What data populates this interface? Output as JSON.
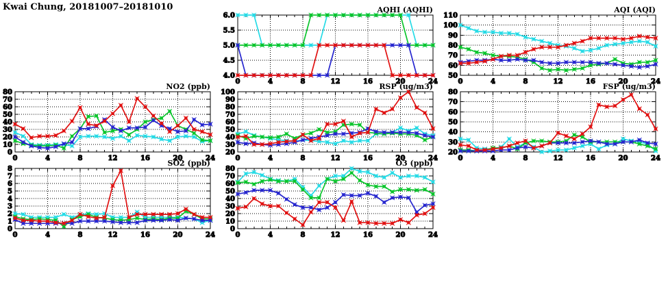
{
  "header": {
    "title": "Kwai Chung, 20181007–20181010"
  },
  "palette": {
    "red": "#e11212",
    "blue": "#2727cf",
    "green": "#0bc52d",
    "cyan": "#27dbe6"
  },
  "chart_data": [
    {
      "id": "aqhi",
      "type": "line",
      "title": "AQHI (AQHI)",
      "xlim": [
        0,
        24
      ],
      "x_step": 1,
      "xtick_labels": [
        "0",
        "4",
        "8",
        "12",
        "16",
        "20",
        "24"
      ],
      "ylim": [
        4.0,
        6.0
      ],
      "ytick_labels": [
        "4.0",
        "4.5",
        "5.0",
        "5.5",
        "6.0"
      ],
      "grid": "dotted",
      "legend": "none",
      "series": [
        {
          "name": "cyan",
          "color": "cyan",
          "values": [
            6,
            6,
            6,
            5,
            5,
            5,
            5,
            5,
            5,
            5,
            5,
            6,
            6,
            6,
            6,
            6,
            6,
            6,
            6,
            6,
            6,
            6,
            5,
            5,
            5
          ]
        },
        {
          "name": "green",
          "color": "green",
          "values": [
            5,
            5,
            5,
            5,
            5,
            5,
            5,
            5,
            5,
            6,
            6,
            6,
            6,
            6,
            6,
            6,
            6,
            6,
            6,
            6,
            6,
            5,
            5,
            5,
            5
          ]
        },
        {
          "name": "blue",
          "color": "blue",
          "values": [
            5,
            4,
            4,
            4,
            4,
            4,
            4,
            4,
            4,
            4,
            4,
            4,
            5,
            5,
            5,
            5,
            5,
            5,
            5,
            5,
            5,
            5,
            4,
            4,
            4
          ]
        },
        {
          "name": "red",
          "color": "red",
          "values": [
            4,
            4,
            4,
            4,
            4,
            4,
            4,
            4,
            4,
            4,
            5,
            5,
            5,
            5,
            5,
            5,
            5,
            5,
            5,
            4,
            4,
            4,
            4,
            4,
            4
          ]
        }
      ]
    },
    {
      "id": "aqi",
      "type": "line",
      "title": "AQI (AQI)",
      "xlim": [
        0,
        24
      ],
      "x_step": 1,
      "xtick_labels": [
        "0",
        "4",
        "8",
        "12",
        "16",
        "20",
        "24"
      ],
      "ylim": [
        50,
        110
      ],
      "ytick_labels": [
        "50",
        "60",
        "70",
        "80",
        "90",
        "100",
        "110"
      ],
      "grid": "dotted",
      "legend": "none",
      "series": [
        {
          "name": "cyan",
          "color": "cyan",
          "values": [
            100,
            97,
            94,
            93,
            93,
            92,
            92,
            91,
            88,
            86,
            84,
            82,
            80,
            79,
            77,
            74,
            75,
            77,
            80,
            81,
            82,
            83,
            84,
            83,
            79
          ]
        },
        {
          "name": "green",
          "color": "green",
          "values": [
            78,
            76,
            73,
            72,
            70,
            69,
            69,
            68,
            66,
            63,
            57,
            55,
            56,
            55,
            56,
            57,
            60,
            61,
            62,
            66,
            62,
            61,
            63,
            63,
            65
          ]
        },
        {
          "name": "blue",
          "color": "blue",
          "values": [
            63,
            64,
            65,
            65,
            66,
            65,
            65,
            66,
            65,
            65,
            63,
            62,
            62,
            63,
            63,
            63,
            63,
            62,
            62,
            61,
            60,
            59,
            58,
            59,
            61
          ]
        },
        {
          "name": "red",
          "color": "red",
          "values": [
            62,
            62,
            63,
            64,
            66,
            69,
            70,
            70,
            73,
            76,
            78,
            78,
            78,
            80,
            82,
            84,
            87,
            87,
            87,
            87,
            86,
            87,
            89,
            88,
            87
          ]
        }
      ]
    },
    {
      "id": "no2",
      "type": "line",
      "title": "NO2 (ppb)",
      "xlim": [
        0,
        24
      ],
      "x_step": 1,
      "xtick_labels": [
        "0",
        "4",
        "8",
        "12",
        "16",
        "20",
        "24"
      ],
      "ylim": [
        0,
        80
      ],
      "ytick_labels": [
        "0",
        "10",
        "20",
        "30",
        "40",
        "50",
        "60",
        "70",
        "80"
      ],
      "grid": "dotted",
      "legend": "none",
      "series": [
        {
          "name": "cyan",
          "color": "cyan",
          "values": [
            26,
            21,
            10,
            9,
            9,
            10,
            10,
            8,
            20,
            21,
            21,
            20,
            18,
            21,
            15,
            22,
            21,
            20,
            17,
            15,
            20,
            21,
            20,
            14,
            15
          ]
        },
        {
          "name": "green",
          "color": "green",
          "values": [
            15,
            11,
            9,
            8,
            8,
            9,
            5,
            21,
            31,
            47,
            48,
            26,
            28,
            30,
            23,
            30,
            40,
            43,
            45,
            54,
            35,
            30,
            25,
            16,
            15
          ]
        },
        {
          "name": "blue",
          "color": "blue",
          "values": [
            20,
            13,
            8,
            6,
            5,
            7,
            11,
            13,
            31,
            31,
            34,
            43,
            33,
            28,
            32,
            32,
            33,
            42,
            35,
            31,
            27,
            28,
            43,
            36,
            37
          ]
        },
        {
          "name": "red",
          "color": "red",
          "values": [
            37,
            31,
            19,
            21,
            21,
            22,
            28,
            41,
            59,
            37,
            35,
            41,
            51,
            62,
            40,
            71,
            60,
            48,
            38,
            27,
            35,
            45,
            30,
            27,
            23
          ]
        }
      ]
    },
    {
      "id": "rsp",
      "type": "line",
      "title": "RSP (ug/m3)",
      "xlim": [
        0,
        24
      ],
      "x_step": 1,
      "xtick_labels": [
        "0",
        "4",
        "8",
        "12",
        "16",
        "20",
        "24"
      ],
      "ylim": [
        20,
        100
      ],
      "ytick_labels": [
        "20",
        "30",
        "40",
        "50",
        "60",
        "70",
        "80",
        "90",
        "100"
      ],
      "grid": "dotted",
      "legend": "none",
      "series": [
        {
          "name": "cyan",
          "color": "cyan",
          "values": [
            44,
            47,
            42,
            40,
            38,
            36,
            35,
            34,
            36,
            35,
            34,
            33,
            31,
            35,
            33,
            35,
            35,
            44,
            44,
            46,
            52,
            48,
            52,
            44,
            42
          ]
        },
        {
          "name": "green",
          "color": "green",
          "values": [
            42,
            38,
            41,
            40,
            39,
            40,
            44,
            38,
            43,
            45,
            50,
            46,
            47,
            56,
            57,
            56,
            46,
            45,
            44,
            45,
            44,
            44,
            42,
            36,
            40
          ]
        },
        {
          "name": "blue",
          "color": "blue",
          "values": [
            33,
            31,
            32,
            30,
            29,
            30,
            31,
            33,
            36,
            38,
            40,
            42,
            44,
            44,
            45,
            46,
            51,
            47,
            46,
            46,
            46,
            46,
            45,
            42,
            40
          ]
        },
        {
          "name": "red",
          "color": "red",
          "values": [
            40,
            41,
            30,
            30,
            31,
            33,
            34,
            35,
            43,
            35,
            38,
            57,
            57,
            61,
            40,
            45,
            46,
            77,
            72,
            77,
            92,
            100,
            79,
            72,
            51
          ]
        }
      ]
    },
    {
      "id": "fsp",
      "type": "line",
      "title": "FSP (ug/m3)",
      "xlim": [
        0,
        24
      ],
      "x_step": 1,
      "xtick_labels": [
        "0",
        "4",
        "8",
        "12",
        "16",
        "20",
        "24"
      ],
      "ylim": [
        20,
        80
      ],
      "ytick_labels": [
        "20",
        "30",
        "40",
        "50",
        "60",
        "70",
        "80"
      ],
      "grid": "dotted",
      "legend": "none",
      "series": [
        {
          "name": "cyan",
          "color": "cyan",
          "values": [
            33,
            32,
            24,
            23,
            23,
            25,
            33,
            25,
            29,
            25,
            20,
            21,
            22,
            22,
            24,
            26,
            28,
            23,
            27,
            28,
            33,
            31,
            30,
            28,
            21
          ]
        },
        {
          "name": "green",
          "color": "green",
          "values": [
            22,
            22,
            21,
            22,
            24,
            24,
            26,
            23,
            29,
            31,
            31,
            30,
            30,
            31,
            37,
            35,
            30,
            30,
            30,
            30,
            30,
            30,
            28,
            26,
            23
          ]
        },
        {
          "name": "blue",
          "color": "blue",
          "values": [
            21,
            21,
            21,
            21,
            21,
            22,
            22,
            24,
            25,
            24,
            26,
            29,
            29,
            29,
            29,
            30,
            31,
            30,
            28,
            28,
            30,
            30,
            32,
            29,
            28
          ]
        },
        {
          "name": "red",
          "color": "red",
          "values": [
            27,
            26,
            22,
            22,
            23,
            24,
            26,
            29,
            31,
            24,
            26,
            29,
            39,
            36,
            33,
            38,
            45,
            67,
            65,
            66,
            72,
            77,
            63,
            57,
            43
          ]
        }
      ]
    },
    {
      "id": "so2",
      "type": "line",
      "title": "SO2 (ppb)",
      "xlim": [
        0,
        24
      ],
      "x_step": 1,
      "xtick_labels": [
        "0",
        "4",
        "8",
        "12",
        "16",
        "20",
        "24"
      ],
      "ylim": [
        0,
        8
      ],
      "ytick_labels": [
        "0",
        "1",
        "2",
        "3",
        "4",
        "5",
        "6",
        "7",
        "8"
      ],
      "grid": "dotted",
      "legend": "none",
      "series": [
        {
          "name": "cyan",
          "color": "cyan",
          "values": [
            2.0,
            1.9,
            1.5,
            1.5,
            1.5,
            1.5,
            1.9,
            1.5,
            1.8,
            2.0,
            1.9,
            2.0,
            1.5,
            1.5,
            1.5,
            2.2,
            1.5,
            1.5,
            1.5,
            1.5,
            1.5,
            1.4,
            1.3,
            0.8,
            1.1
          ]
        },
        {
          "name": "green",
          "color": "green",
          "values": [
            1.6,
            1.3,
            1.2,
            1.3,
            1.2,
            1.1,
            0.3,
            1.2,
            1.6,
            1.9,
            1.5,
            1.4,
            1.2,
            1.1,
            1.2,
            1.4,
            1.2,
            1.3,
            1.2,
            1.4,
            1.4,
            2.3,
            1.9,
            1.3,
            1.3
          ]
        },
        {
          "name": "blue",
          "color": "blue",
          "values": [
            1.2,
            0.7,
            0.7,
            0.7,
            0.7,
            0.7,
            0.7,
            0.7,
            1.0,
            1.0,
            1.0,
            1.0,
            0.9,
            0.8,
            0.8,
            0.8,
            1.1,
            1.1,
            1.1,
            1.2,
            1.1,
            1.4,
            1.3,
            1.1,
            1.1
          ]
        },
        {
          "name": "red",
          "color": "red",
          "values": [
            1.4,
            1.1,
            1.1,
            1.0,
            1.0,
            0.8,
            0.7,
            1.1,
            1.9,
            1.6,
            1.4,
            1.5,
            5.7,
            7.7,
            1.5,
            1.9,
            1.9,
            1.9,
            1.9,
            1.9,
            2.0,
            2.6,
            1.9,
            1.5,
            1.5
          ]
        }
      ]
    },
    {
      "id": "o3",
      "type": "line",
      "title": "O3 (ppb)",
      "xlim": [
        0,
        24
      ],
      "x_step": 1,
      "xtick_labels": [
        "0",
        "4",
        "8",
        "12",
        "16",
        "20",
        "24"
      ],
      "ylim": [
        0,
        80
      ],
      "ytick_labels": [
        "0",
        "10",
        "20",
        "30",
        "40",
        "50",
        "60",
        "70",
        "80"
      ],
      "grid": "dotted",
      "legend": "none",
      "series": [
        {
          "name": "cyan",
          "color": "cyan",
          "values": [
            62,
            73,
            75,
            71,
            66,
            64,
            63,
            66,
            55,
            44,
            57,
            66,
            70,
            70,
            80,
            76,
            75,
            70,
            68,
            74,
            68,
            70,
            70,
            68,
            62
          ]
        },
        {
          "name": "green",
          "color": "green",
          "values": [
            61,
            62,
            59,
            63,
            65,
            63,
            63,
            63,
            52,
            41,
            41,
            66,
            63,
            66,
            74,
            64,
            58,
            56,
            56,
            49,
            52,
            52,
            51,
            52,
            46
          ]
        },
        {
          "name": "blue",
          "color": "blue",
          "values": [
            46,
            48,
            51,
            51,
            51,
            47,
            39,
            32,
            28,
            28,
            25,
            28,
            35,
            45,
            44,
            44,
            47,
            43,
            35,
            41,
            42,
            41,
            22,
            31,
            33
          ]
        },
        {
          "name": "red",
          "color": "red",
          "values": [
            27,
            29,
            40,
            33,
            30,
            30,
            21,
            13,
            5,
            22,
            35,
            35,
            28,
            11,
            36,
            8,
            8,
            7,
            7,
            7,
            12,
            8,
            18,
            20,
            28
          ]
        }
      ]
    }
  ]
}
